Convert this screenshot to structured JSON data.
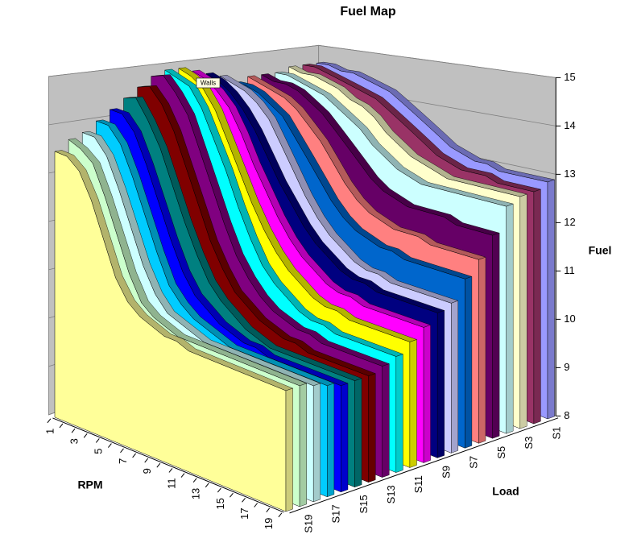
{
  "chart_data": {
    "type": "area3d",
    "title": "Fuel Map",
    "x_label": "RPM",
    "depth_label": "Load",
    "y_label": "Fuel",
    "annotation": "Walls",
    "categories": [
      "1",
      null,
      "3",
      null,
      "5",
      null,
      "7",
      null,
      "9",
      null,
      "11",
      null,
      "13",
      null,
      "15",
      null,
      "17",
      null,
      "19",
      null
    ],
    "ylim": [
      8,
      15
    ],
    "yticks": [
      8,
      9,
      10,
      11,
      12,
      13,
      14,
      15
    ],
    "grid": true,
    "series": [
      {
        "name": "S1",
        "color": "#9999FF",
        "values": [
          14.6,
          14.6,
          14.5,
          14.5,
          14.4,
          14.3,
          14.2,
          14.0,
          13.8,
          13.6,
          13.4,
          13.2,
          13.1,
          13.0,
          13.0,
          12.9,
          12.9,
          12.9,
          12.9,
          12.9
        ]
      },
      {
        "name": null,
        "color": "#993366",
        "values": [
          14.6,
          14.6,
          14.5,
          14.4,
          14.3,
          14.2,
          14.1,
          13.9,
          13.7,
          13.5,
          13.3,
          13.1,
          13.0,
          12.9,
          12.9,
          12.9,
          12.8,
          12.8,
          12.8,
          12.8
        ]
      },
      {
        "name": "S3",
        "color": "#FFFFCC",
        "values": [
          14.6,
          14.5,
          14.5,
          14.4,
          14.3,
          14.1,
          14.0,
          13.8,
          13.5,
          13.3,
          13.1,
          13.0,
          12.9,
          12.8,
          12.8,
          12.8,
          12.8,
          12.8,
          12.8,
          12.8
        ]
      },
      {
        "name": null,
        "color": "#CCFFFF",
        "values": [
          14.5,
          14.5,
          14.4,
          14.3,
          14.2,
          14.0,
          13.8,
          13.6,
          13.3,
          13.1,
          12.9,
          12.8,
          12.7,
          12.7,
          12.7,
          12.7,
          12.7,
          12.7,
          12.7,
          12.7
        ]
      },
      {
        "name": "S5",
        "color": "#660066",
        "values": [
          14.5,
          14.4,
          14.4,
          14.3,
          14.1,
          13.9,
          13.6,
          13.3,
          13.0,
          12.7,
          12.5,
          12.4,
          12.3,
          12.3,
          12.3,
          12.3,
          12.2,
          12.2,
          12.2,
          12.2
        ]
      },
      {
        "name": null,
        "color": "#FF8080",
        "values": [
          14.5,
          14.4,
          14.3,
          14.2,
          14.0,
          13.7,
          13.4,
          13.0,
          12.6,
          12.3,
          12.1,
          12.0,
          11.9,
          11.9,
          11.9,
          11.8,
          11.8,
          11.8,
          11.8,
          11.8
        ]
      },
      {
        "name": "S7",
        "color": "#0066CC",
        "values": [
          14.4,
          14.4,
          14.3,
          14.1,
          13.9,
          13.5,
          13.1,
          12.7,
          12.3,
          12.0,
          11.8,
          11.7,
          11.6,
          11.6,
          11.5,
          11.5,
          11.5,
          11.5,
          11.5,
          11.5
        ]
      },
      {
        "name": null,
        "color": "#CCCCFF",
        "values": [
          14.6,
          14.5,
          14.4,
          14.2,
          13.9,
          13.4,
          12.9,
          12.4,
          12.0,
          11.7,
          11.5,
          11.3,
          11.2,
          11.2,
          11.1,
          11.1,
          11.1,
          11.1,
          11.1,
          11.1
        ]
      },
      {
        "name": "S9",
        "color": "#000080",
        "values": [
          14.7,
          14.6,
          14.4,
          14.1,
          13.7,
          13.2,
          12.7,
          12.3,
          11.9,
          11.6,
          11.4,
          11.2,
          11.1,
          11.1,
          11.0,
          11.0,
          11.0,
          11.0,
          11.0,
          11.0
        ]
      },
      {
        "name": null,
        "color": "#FF00FF",
        "values": [
          14.8,
          14.7,
          14.5,
          14.2,
          13.7,
          13.1,
          12.6,
          12.1,
          11.7,
          11.4,
          11.2,
          11.0,
          10.9,
          10.9,
          10.8,
          10.8,
          10.8,
          10.8,
          10.8,
          10.8
        ]
      },
      {
        "name": "S11",
        "color": "#FFFF00",
        "values": [
          14.9,
          14.8,
          14.6,
          14.2,
          13.6,
          13.0,
          12.4,
          11.9,
          11.5,
          11.2,
          11.0,
          10.8,
          10.7,
          10.7,
          10.6,
          10.6,
          10.6,
          10.6,
          10.6,
          10.6
        ]
      },
      {
        "name": null,
        "color": "#00FFFF",
        "values": [
          14.9,
          14.8,
          14.7,
          14.3,
          13.7,
          13.1,
          12.4,
          11.8,
          11.3,
          11.0,
          10.8,
          10.6,
          10.5,
          10.5,
          10.4,
          10.4,
          10.4,
          10.4,
          10.4,
          10.4
        ]
      },
      {
        "name": "S13",
        "color": "#800080",
        "values": [
          14.8,
          14.9,
          14.6,
          14.2,
          13.5,
          12.8,
          12.1,
          11.5,
          11.1,
          10.8,
          10.6,
          10.5,
          10.4,
          10.4,
          10.3,
          10.3,
          10.3,
          10.3,
          10.3,
          10.3
        ]
      },
      {
        "name": null,
        "color": "#800000",
        "values": [
          14.6,
          14.7,
          14.4,
          13.9,
          13.2,
          12.5,
          11.8,
          11.3,
          10.9,
          10.7,
          10.5,
          10.4,
          10.3,
          10.3,
          10.2,
          10.2,
          10.2,
          10.2,
          10.2,
          10.2
        ]
      },
      {
        "name": "S15",
        "color": "#008080",
        "values": [
          14.4,
          14.5,
          14.1,
          13.6,
          12.9,
          12.2,
          11.6,
          11.1,
          10.8,
          10.6,
          10.4,
          10.3,
          10.2,
          10.2,
          10.2,
          10.2,
          10.2,
          10.2,
          10.2,
          10.2
        ]
      },
      {
        "name": null,
        "color": "#0000FF",
        "values": [
          14.2,
          14.2,
          13.9,
          13.3,
          12.6,
          11.9,
          11.3,
          10.9,
          10.7,
          10.5,
          10.4,
          10.3,
          10.3,
          10.2,
          10.2,
          10.2,
          10.2,
          10.2,
          10.2,
          10.2
        ]
      },
      {
        "name": "S17",
        "color": "#00CCFF",
        "values": [
          14.0,
          14.0,
          13.7,
          13.1,
          12.4,
          11.7,
          11.1,
          10.8,
          10.6,
          10.5,
          10.4,
          10.3,
          10.3,
          10.3,
          10.3,
          10.3,
          10.3,
          10.3,
          10.3,
          10.3
        ]
      },
      {
        "name": null,
        "color": "#CCFFFF",
        "values": [
          13.8,
          13.8,
          13.5,
          12.9,
          12.2,
          11.5,
          11.0,
          10.7,
          10.6,
          10.5,
          10.4,
          10.4,
          10.4,
          10.4,
          10.4,
          10.4,
          10.4,
          10.4,
          10.4,
          10.4
        ]
      },
      {
        "name": "S19",
        "color": "#CCFFCC",
        "values": [
          13.7,
          13.6,
          13.4,
          12.8,
          12.1,
          11.4,
          10.9,
          10.7,
          10.6,
          10.5,
          10.5,
          10.5,
          10.5,
          10.5,
          10.5,
          10.5,
          10.5,
          10.5,
          10.5,
          10.5
        ]
      },
      {
        "name": null,
        "color": "#FFFF99",
        "values": [
          13.5,
          13.5,
          13.3,
          12.8,
          12.1,
          11.4,
          11.0,
          10.8,
          10.7,
          10.6,
          10.6,
          10.5,
          10.5,
          10.5,
          10.5,
          10.5,
          10.5,
          10.5,
          10.5,
          10.5
        ]
      }
    ]
  }
}
